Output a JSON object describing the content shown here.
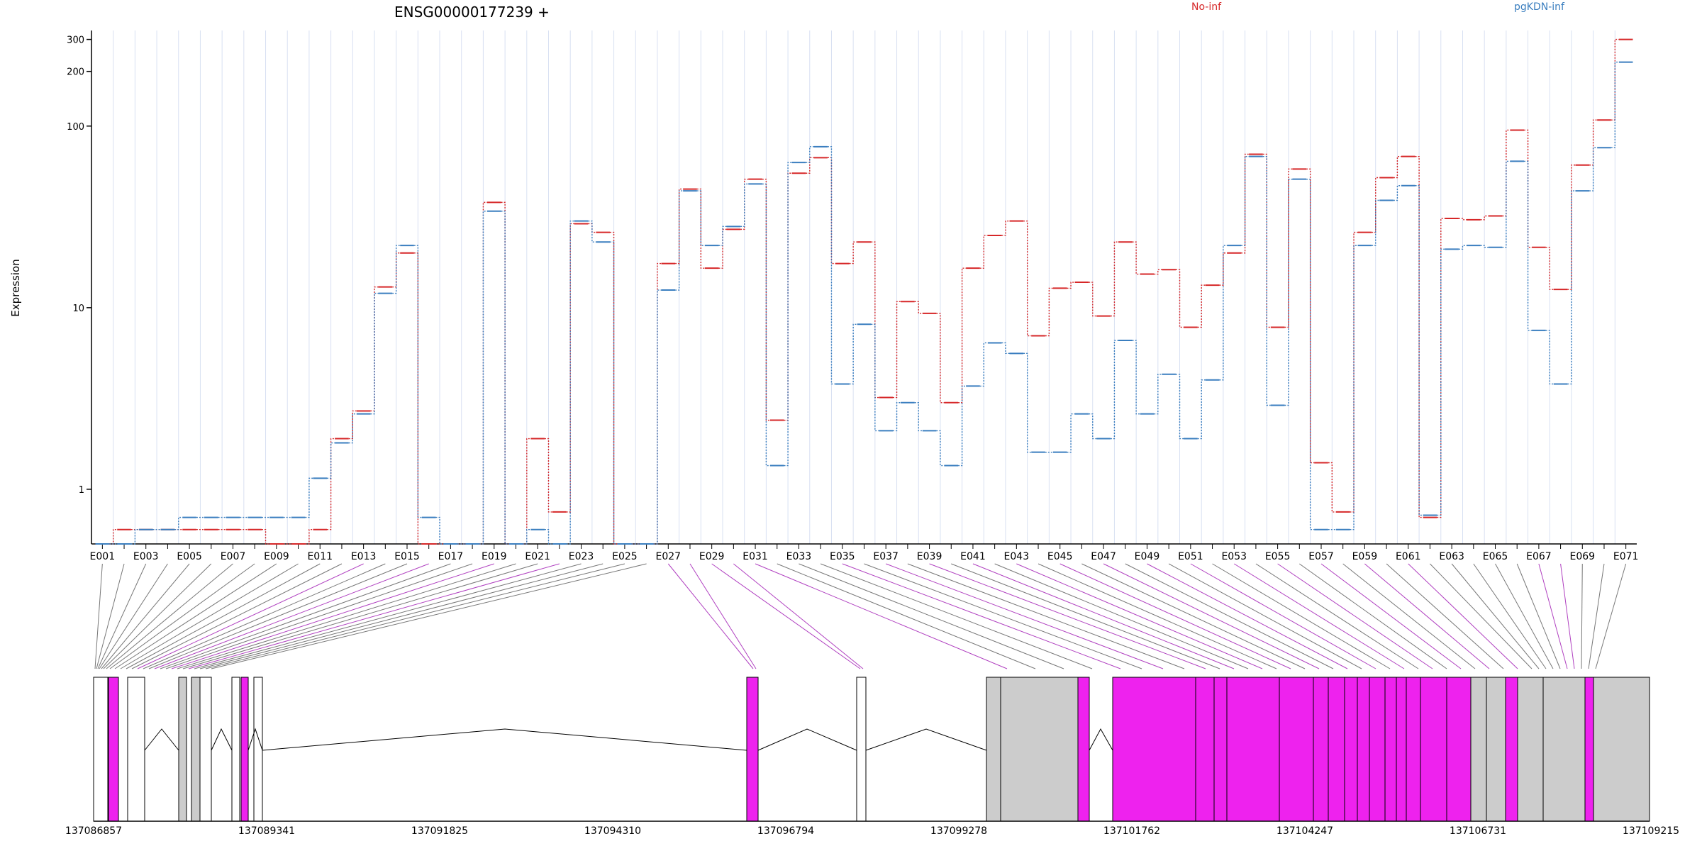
{
  "chart_data": {
    "type": "line",
    "title": "ENSG00000177239 +",
    "ylabel": "Expression",
    "y_scale": "log",
    "ylim": [
      0.5,
      330
    ],
    "y_ticks": [
      "1",
      "10",
      "100",
      "200",
      "300"
    ],
    "x_tick_labels": [
      "E001",
      "E003",
      "E005",
      "E007",
      "E009",
      "E011",
      "E013",
      "E015",
      "E017",
      "E019",
      "E021",
      "E023",
      "E025",
      "E027",
      "E029",
      "E031",
      "E033",
      "E035",
      "E037",
      "E039",
      "E041",
      "E043",
      "E045",
      "E047",
      "E049",
      "E051",
      "E053",
      "E055",
      "E057",
      "E059",
      "E061",
      "E063",
      "E065",
      "E067",
      "E069",
      "E071"
    ],
    "exons": [
      "E001",
      "E002",
      "E003",
      "E004",
      "E005",
      "E006",
      "E007",
      "E008",
      "E009",
      "E010",
      "E011",
      "E012",
      "E013",
      "E014",
      "E015",
      "E016",
      "E017",
      "E018",
      "E019",
      "E020",
      "E021",
      "E022",
      "E023",
      "E024",
      "E025",
      "E026",
      "E027",
      "E028",
      "E029",
      "E030",
      "E031",
      "E032",
      "E033",
      "E034",
      "E035",
      "E036",
      "E037",
      "E038",
      "E039",
      "E040",
      "E041",
      "E042",
      "E043",
      "E044",
      "E045",
      "E046",
      "E047",
      "E048",
      "E049",
      "E050",
      "E051",
      "E052",
      "E053",
      "E054",
      "E055",
      "E056",
      "E057",
      "E058",
      "E059",
      "E060",
      "E061",
      "E062",
      "E063",
      "E064",
      "E065",
      "E066",
      "E067",
      "E068",
      "E069",
      "E070",
      "E071"
    ],
    "series": [
      {
        "name": "No-inf",
        "color": "#d62728",
        "values": [
          0.5,
          0.6,
          0.6,
          0.6,
          0.6,
          0.6,
          0.6,
          0.6,
          0.5,
          0.5,
          0.6,
          1.9,
          2.7,
          13,
          20,
          0.5,
          0.5,
          0.5,
          38,
          0.5,
          1.9,
          0.75,
          29,
          26,
          0.5,
          0.5,
          17.5,
          45,
          16.5,
          27,
          51,
          2.4,
          55,
          67,
          17.5,
          23,
          3.2,
          10.8,
          9.3,
          3.0,
          16.5,
          25,
          30,
          7.0,
          12.8,
          13.8,
          9.0,
          23,
          15.3,
          16.2,
          7.8,
          13.3,
          20,
          70,
          7.8,
          58,
          1.4,
          0.75,
          26,
          52,
          68,
          0.7,
          31,
          30.5,
          32,
          95,
          21.5,
          12.6,
          61,
          108,
          300
        ]
      },
      {
        "name": "pgKDN-inf",
        "color": "#3a7ebf",
        "values": [
          0.5,
          0.5,
          0.6,
          0.6,
          0.7,
          0.7,
          0.7,
          0.7,
          0.7,
          0.7,
          1.15,
          1.8,
          2.6,
          12,
          22,
          0.7,
          0.5,
          0.5,
          34,
          0.5,
          0.6,
          0.5,
          30,
          23,
          0.5,
          0.5,
          12.5,
          44,
          22,
          28,
          48,
          1.35,
          63,
          77,
          3.8,
          8.1,
          2.1,
          3.0,
          2.1,
          1.35,
          3.7,
          6.4,
          5.6,
          1.6,
          1.6,
          2.6,
          1.9,
          6.6,
          2.6,
          4.3,
          1.9,
          4.0,
          22,
          68,
          2.9,
          51,
          0.6,
          0.6,
          22,
          39,
          47,
          0.72,
          21,
          22,
          21.5,
          64,
          7.5,
          3.8,
          44,
          76,
          225
        ]
      }
    ],
    "gene_track": {
      "coordinates": [
        "137086857",
        "137089341",
        "137091825",
        "137094310",
        "137096794",
        "137099278",
        "137101762",
        "137104247",
        "137106731",
        "137109215"
      ],
      "highlight_color": "#ee22ee",
      "exon_fill": "#cccccc"
    }
  }
}
